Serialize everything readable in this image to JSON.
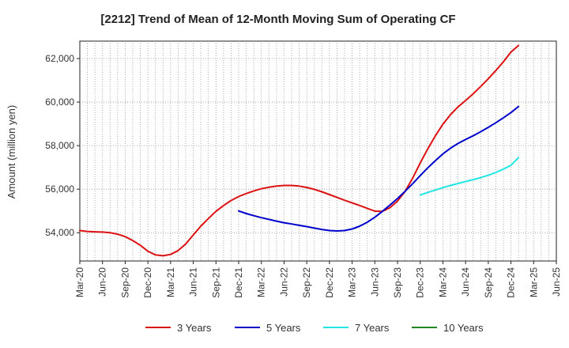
{
  "chart_data": {
    "type": "line",
    "title": "[2212]  Trend of Mean of 12-Month Moving Sum of Operating CF",
    "xlabel": "",
    "ylabel": "Amount (million yen)",
    "x_ticks": [
      "Mar-20",
      "Jun-20",
      "Sep-20",
      "Dec-20",
      "Mar-21",
      "Jun-21",
      "Sep-21",
      "Dec-21",
      "Mar-22",
      "Jun-22",
      "Sep-22",
      "Dec-22",
      "Mar-23",
      "Jun-23",
      "Sep-23",
      "Dec-23",
      "Mar-24",
      "Jun-24",
      "Sep-24",
      "Dec-24",
      "Mar-25",
      "Jun-25"
    ],
    "y_ticks": [
      54000,
      56000,
      58000,
      60000,
      62000
    ],
    "y_tick_labels": [
      "54,000",
      "56,000",
      "58,000",
      "60,000",
      "62,000"
    ],
    "ylim": [
      52700,
      62800
    ],
    "grid": true,
    "legend_position": "bottom",
    "series": [
      {
        "name": "3 Years",
        "color": "#dd1111",
        "points": [
          [
            "Mar-20",
            54100
          ],
          [
            "Apr-20",
            54060
          ],
          [
            "May-20",
            54040
          ],
          [
            "Jun-20",
            54030
          ],
          [
            "Jul-20",
            54000
          ],
          [
            "Aug-20",
            53930
          ],
          [
            "Sep-20",
            53820
          ],
          [
            "Oct-20",
            53640
          ],
          [
            "Nov-20",
            53420
          ],
          [
            "Dec-20",
            53150
          ],
          [
            "Jan-21",
            52980
          ],
          [
            "Feb-21",
            52940
          ],
          [
            "Mar-21",
            53000
          ],
          [
            "Apr-21",
            53180
          ],
          [
            "May-21",
            53480
          ],
          [
            "Jun-21",
            53900
          ],
          [
            "Jul-21",
            54300
          ],
          [
            "Aug-21",
            54650
          ],
          [
            "Sep-21",
            54980
          ],
          [
            "Oct-21",
            55250
          ],
          [
            "Nov-21",
            55480
          ],
          [
            "Dec-21",
            55660
          ],
          [
            "Jan-22",
            55800
          ],
          [
            "Feb-22",
            55920
          ],
          [
            "Mar-22",
            56020
          ],
          [
            "Apr-22",
            56090
          ],
          [
            "May-22",
            56140
          ],
          [
            "Jun-22",
            56170
          ],
          [
            "Jul-22",
            56170
          ],
          [
            "Aug-22",
            56140
          ],
          [
            "Sep-22",
            56080
          ],
          [
            "Oct-22",
            55990
          ],
          [
            "Nov-22",
            55880
          ],
          [
            "Dec-22",
            55750
          ],
          [
            "Jan-23",
            55620
          ],
          [
            "Feb-23",
            55490
          ],
          [
            "Mar-23",
            55370
          ],
          [
            "Apr-23",
            55250
          ],
          [
            "May-23",
            55120
          ],
          [
            "Jun-23",
            54990
          ],
          [
            "Jul-23",
            54980
          ],
          [
            "Aug-23",
            55150
          ],
          [
            "Sep-23",
            55450
          ],
          [
            "Oct-23",
            55900
          ],
          [
            "Nov-23",
            56500
          ],
          [
            "Dec-23",
            57200
          ],
          [
            "Jan-24",
            57850
          ],
          [
            "Feb-24",
            58450
          ],
          [
            "Mar-24",
            58980
          ],
          [
            "Apr-24",
            59420
          ],
          [
            "May-24",
            59780
          ],
          [
            "Jun-24",
            60070
          ],
          [
            "Jul-24",
            60380
          ],
          [
            "Aug-24",
            60720
          ],
          [
            "Sep-24",
            61070
          ],
          [
            "Oct-24",
            61450
          ],
          [
            "Nov-24",
            61850
          ],
          [
            "Dec-24",
            62300
          ],
          [
            "Jan-25",
            62600
          ]
        ]
      },
      {
        "name": "5 Years",
        "color": "#0000cc",
        "points": [
          [
            "Dec-21",
            55000
          ],
          [
            "Jan-22",
            54880
          ],
          [
            "Feb-22",
            54780
          ],
          [
            "Mar-22",
            54690
          ],
          [
            "Apr-22",
            54610
          ],
          [
            "May-22",
            54530
          ],
          [
            "Jun-22",
            54460
          ],
          [
            "Jul-22",
            54400
          ],
          [
            "Aug-22",
            54340
          ],
          [
            "Sep-22",
            54280
          ],
          [
            "Oct-22",
            54210
          ],
          [
            "Nov-22",
            54150
          ],
          [
            "Dec-22",
            54100
          ],
          [
            "Jan-23",
            54080
          ],
          [
            "Feb-23",
            54100
          ],
          [
            "Mar-23",
            54170
          ],
          [
            "Apr-23",
            54300
          ],
          [
            "May-23",
            54480
          ],
          [
            "Jun-23",
            54710
          ],
          [
            "Jul-23",
            54980
          ],
          [
            "Aug-23",
            55270
          ],
          [
            "Sep-23",
            55570
          ],
          [
            "Oct-23",
            55900
          ],
          [
            "Nov-23",
            56250
          ],
          [
            "Dec-23",
            56620
          ],
          [
            "Jan-24",
            56980
          ],
          [
            "Feb-24",
            57310
          ],
          [
            "Mar-24",
            57620
          ],
          [
            "Apr-24",
            57880
          ],
          [
            "May-24",
            58100
          ],
          [
            "Jun-24",
            58280
          ],
          [
            "Jul-24",
            58450
          ],
          [
            "Aug-24",
            58640
          ],
          [
            "Sep-24",
            58840
          ],
          [
            "Oct-24",
            59050
          ],
          [
            "Nov-24",
            59280
          ],
          [
            "Dec-24",
            59520
          ],
          [
            "Jan-25",
            59800
          ]
        ]
      },
      {
        "name": "7 Years",
        "color": "#22e5e5",
        "points": [
          [
            "Dec-23",
            55730
          ],
          [
            "Jan-24",
            55850
          ],
          [
            "Feb-24",
            55960
          ],
          [
            "Mar-24",
            56070
          ],
          [
            "Apr-24",
            56170
          ],
          [
            "May-24",
            56260
          ],
          [
            "Jun-24",
            56350
          ],
          [
            "Jul-24",
            56440
          ],
          [
            "Aug-24",
            56530
          ],
          [
            "Sep-24",
            56640
          ],
          [
            "Oct-24",
            56770
          ],
          [
            "Nov-24",
            56920
          ],
          [
            "Dec-24",
            57100
          ],
          [
            "Jan-25",
            57450
          ]
        ]
      },
      {
        "name": "10 Years",
        "color": "#228822",
        "points": []
      }
    ]
  }
}
